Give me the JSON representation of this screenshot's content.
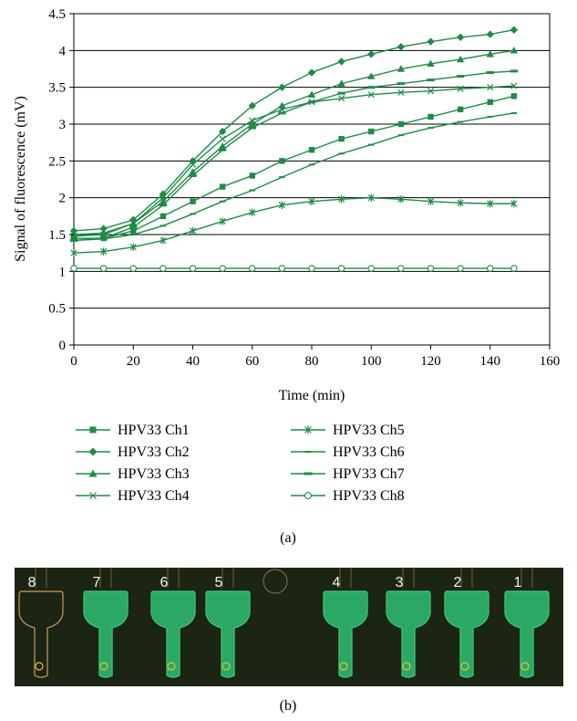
{
  "chart_data": {
    "type": "line",
    "xlabel": "Time (min)",
    "ylabel": "Signal of fluorescence (mV)",
    "xlim": [
      0,
      160
    ],
    "ylim": [
      0,
      4.5
    ],
    "xticks": [
      "0",
      "20",
      "40",
      "60",
      "80",
      "100",
      "120",
      "140",
      "160"
    ],
    "yticks": [
      "0",
      "0.5",
      "1",
      "1.5",
      "2",
      "2.5",
      "3",
      "3.5",
      "4",
      "4.5"
    ],
    "grid": "horizontal",
    "legend_position": "bottom",
    "line_color": "#1e8c46",
    "series": [
      {
        "name": "HPV33 Ch1",
        "marker": "square",
        "x": [
          0,
          10,
          20,
          30,
          40,
          50,
          60,
          70,
          80,
          90,
          100,
          110,
          120,
          130,
          140,
          148
        ],
        "y": [
          1.45,
          1.45,
          1.55,
          1.75,
          1.95,
          2.15,
          2.3,
          2.5,
          2.65,
          2.8,
          2.9,
          3.0,
          3.1,
          3.2,
          3.3,
          3.38
        ]
      },
      {
        "name": "HPV33 Ch2",
        "marker": "diamond",
        "x": [
          0,
          10,
          20,
          30,
          40,
          50,
          60,
          70,
          80,
          90,
          100,
          110,
          120,
          130,
          140,
          148
        ],
        "y": [
          1.55,
          1.58,
          1.7,
          2.05,
          2.5,
          2.9,
          3.25,
          3.5,
          3.7,
          3.85,
          3.95,
          4.05,
          4.12,
          4.18,
          4.22,
          4.28
        ]
      },
      {
        "name": "HPV33 Ch3",
        "marker": "triangle",
        "x": [
          0,
          10,
          20,
          30,
          40,
          50,
          60,
          70,
          80,
          90,
          100,
          110,
          120,
          130,
          140,
          148
        ],
        "y": [
          1.5,
          1.52,
          1.65,
          1.95,
          2.35,
          2.7,
          3.0,
          3.25,
          3.4,
          3.55,
          3.65,
          3.75,
          3.82,
          3.88,
          3.95,
          4.0
        ]
      },
      {
        "name": "HPV33 Ch4",
        "marker": "x",
        "x": [
          0,
          10,
          20,
          30,
          40,
          50,
          60,
          70,
          80,
          90,
          100,
          110,
          120,
          130,
          140,
          148
        ],
        "y": [
          1.48,
          1.5,
          1.65,
          2.0,
          2.45,
          2.8,
          3.05,
          3.2,
          3.3,
          3.35,
          3.4,
          3.43,
          3.45,
          3.48,
          3.5,
          3.52
        ]
      },
      {
        "name": "HPV33 Ch5",
        "marker": "asterisk",
        "x": [
          0,
          10,
          20,
          30,
          40,
          50,
          60,
          70,
          80,
          90,
          100,
          110,
          120,
          130,
          140,
          148
        ],
        "y": [
          1.25,
          1.27,
          1.33,
          1.42,
          1.55,
          1.68,
          1.8,
          1.9,
          1.95,
          1.98,
          2.0,
          1.98,
          1.95,
          1.93,
          1.92,
          1.92
        ]
      },
      {
        "name": "HPV33 Ch6",
        "marker": "dash",
        "x": [
          0,
          10,
          20,
          30,
          40,
          50,
          60,
          70,
          80,
          90,
          100,
          110,
          120,
          130,
          140,
          148
        ],
        "y": [
          1.42,
          1.44,
          1.5,
          1.62,
          1.78,
          1.95,
          2.1,
          2.28,
          2.45,
          2.6,
          2.72,
          2.85,
          2.95,
          3.03,
          3.1,
          3.15
        ]
      },
      {
        "name": "HPV33 Ch7",
        "marker": "bar",
        "x": [
          0,
          10,
          20,
          30,
          40,
          50,
          60,
          70,
          80,
          90,
          100,
          110,
          120,
          130,
          140,
          148
        ],
        "y": [
          1.42,
          1.45,
          1.6,
          1.9,
          2.3,
          2.65,
          2.95,
          3.15,
          3.3,
          3.42,
          3.5,
          3.55,
          3.6,
          3.65,
          3.7,
          3.72
        ]
      },
      {
        "name": "HPV33 Ch8",
        "marker": "circle",
        "x": [
          0,
          10,
          20,
          30,
          40,
          50,
          60,
          70,
          80,
          90,
          100,
          110,
          120,
          130,
          140,
          148
        ],
        "y": [
          1.04,
          1.04,
          1.04,
          1.04,
          1.04,
          1.04,
          1.04,
          1.04,
          1.04,
          1.04,
          1.04,
          1.04,
          1.04,
          1.04,
          1.04,
          1.04
        ]
      }
    ]
  },
  "captions": {
    "a": "(a)",
    "b": "(b)"
  },
  "photo": {
    "well_labels": [
      "8",
      "7",
      "6",
      "5",
      "4",
      "3",
      "2",
      "1"
    ],
    "filled": [
      false,
      true,
      true,
      true,
      true,
      true,
      true,
      true
    ],
    "background_color": "#1c2414",
    "fill_color": "#2aa864"
  }
}
